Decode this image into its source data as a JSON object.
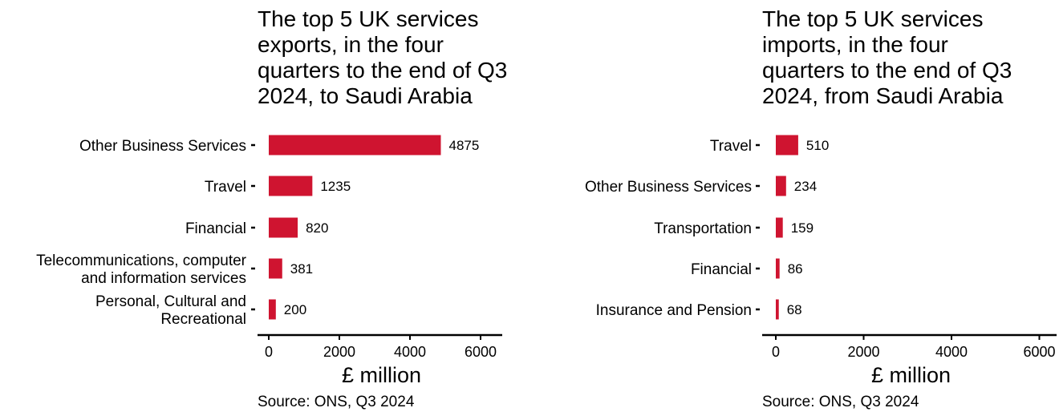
{
  "chart_data": [
    {
      "type": "bar",
      "orientation": "horizontal",
      "title": "The top 5 UK services\nexports, in the four\nquarters to the end of Q3\n2024, to Saudi Arabia",
      "categories": [
        "Other Business Services",
        "Travel",
        "Financial",
        "Telecommunications, computer\nand information services",
        "Personal, Cultural and\nRecreational"
      ],
      "values": [
        4875,
        1235,
        820,
        381,
        200
      ],
      "xlabel": "£ million",
      "ylabel": "",
      "xlim": [
        0,
        6500
      ],
      "xticks": [
        0,
        2000,
        4000,
        6000
      ],
      "grid": false,
      "bar_color": "#cf1430",
      "source": "Source: ONS, Q3 2024"
    },
    {
      "type": "bar",
      "orientation": "horizontal",
      "title": "The top 5 UK services\nimports, in the four\nquarters to the end of Q3\n2024, from Saudi Arabia",
      "categories": [
        "Travel",
        "Other Business Services",
        "Transportation",
        "Financial",
        "Insurance and Pension"
      ],
      "values": [
        510,
        234,
        159,
        86,
        68
      ],
      "xlabel": "£ million",
      "ylabel": "",
      "xlim": [
        0,
        6500
      ],
      "xticks": [
        0,
        2000,
        4000,
        6000
      ],
      "grid": false,
      "bar_color": "#cf1430",
      "source": "Source: ONS, Q3 2024"
    }
  ]
}
